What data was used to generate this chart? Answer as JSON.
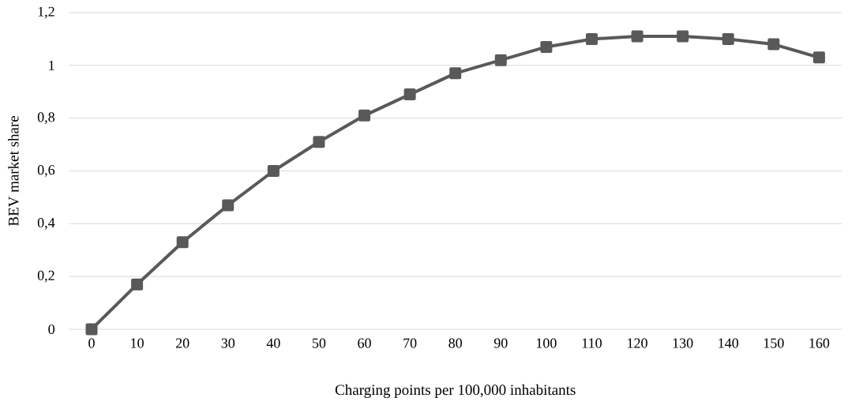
{
  "chart_data": {
    "type": "line",
    "xlabel": "Charging points per 100,000 inhabitants",
    "ylabel": "BEV market share",
    "categories": [
      "0",
      "10",
      "20",
      "30",
      "40",
      "50",
      "60",
      "70",
      "80",
      "90",
      "100",
      "110",
      "120",
      "130",
      "140",
      "150",
      "160"
    ],
    "series": [
      {
        "color": "#595959",
        "values": [
          0,
          0.17,
          0.33,
          0.47,
          0.6,
          0.71,
          0.81,
          0.89,
          0.97,
          1.02,
          1.07,
          1.1,
          1.11,
          1.11,
          1.1,
          1.08,
          1.03
        ]
      }
    ],
    "ylim": [
      0,
      1.2
    ],
    "yticks": [
      0,
      {
        "value": 0.2,
        "label": "0,2"
      },
      {
        "value": 0.4,
        "label": "0,4"
      },
      {
        "value": 0.6,
        "label": "0,6"
      },
      {
        "value": 0.8,
        "label": "0,8"
      },
      1,
      {
        "value": 1.2,
        "label": "1,2"
      }
    ],
    "grid": "y",
    "marker": "square",
    "line_style": "solid"
  }
}
